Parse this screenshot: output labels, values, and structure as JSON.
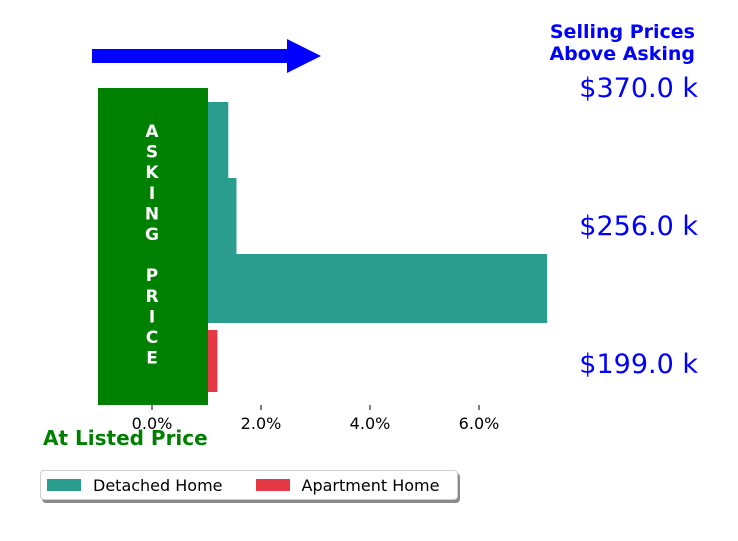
{
  "chart_data": {
    "type": "bar",
    "orientation": "horizontal",
    "title": "Selling Prices\nAbove Asking",
    "series": [
      {
        "name": "Detached Home",
        "color": "#2a9d8f",
        "values": [
          7.25,
          1.55,
          1.4
        ]
      },
      {
        "name": "Apartment Home",
        "color": "#e63946",
        "values": [
          1.2
        ]
      }
    ],
    "xlim": [
      -1.0,
      7.5
    ],
    "xticks": [
      "0.0%",
      "2.0%",
      "4.0%",
      "6.0%"
    ],
    "xtick_values": [
      0,
      2,
      4,
      6
    ],
    "price_labels": [
      "$370.0 k",
      "$256.0 k",
      "$199.0 k"
    ],
    "asking_label": "ASKING PRICE",
    "listed_label": "At Listed Price",
    "grid": false,
    "legend_position": "bottom-left",
    "colors": {
      "asking_block": "#008000",
      "arrow": "#0000ff",
      "price_text": "#0000ff",
      "title_text": "#0000ff",
      "listed_text": "#008000"
    }
  }
}
